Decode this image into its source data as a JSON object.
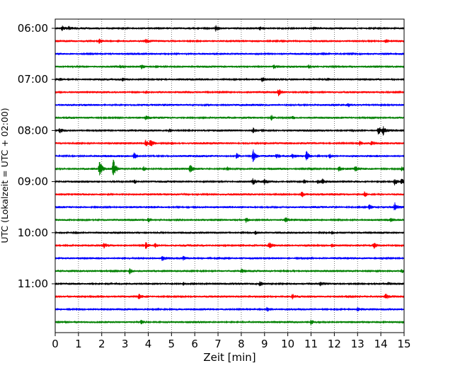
{
  "chart_data": {
    "type": "line",
    "title": "",
    "xlabel": "Zeit  [min]",
    "ylabel": "UTC (Lokalzeit = UTC + 02:00)",
    "xlim": [
      0,
      15
    ],
    "x_ticks": [
      "0",
      "1",
      "2",
      "3",
      "4",
      "5",
      "6",
      "7",
      "8",
      "9",
      "10",
      "11",
      "12",
      "13",
      "14",
      "15"
    ],
    "y_tick_labels": [
      "06:00",
      "07:00",
      "08:00",
      "09:00",
      "10:00",
      "11:00"
    ],
    "grid": "vertical dotted",
    "trace_interval_min": 15,
    "start_utc": "06:00",
    "series": [
      {
        "start": "06:00",
        "color": "#000000",
        "events": [
          [
            0.3,
            3
          ],
          [
            0.6,
            2
          ],
          [
            6.9,
            5
          ],
          [
            8.8,
            2
          ],
          [
            11.1,
            2
          ]
        ]
      },
      {
        "start": "06:15",
        "color": "#ff0000",
        "events": [
          [
            1.9,
            4
          ],
          [
            3.9,
            2
          ],
          [
            14.2,
            3
          ]
        ]
      },
      {
        "start": "06:30",
        "color": "#0000ff",
        "events": [
          [
            5.2,
            1.5
          ],
          [
            11.5,
            1.5
          ]
        ]
      },
      {
        "start": "06:45",
        "color": "#008000",
        "events": [
          [
            2.8,
            2
          ],
          [
            3.7,
            4
          ],
          [
            9.4,
            3
          ],
          [
            10.9,
            2
          ]
        ]
      },
      {
        "start": "07:00",
        "color": "#000000",
        "events": [
          [
            0.2,
            2
          ],
          [
            2.9,
            2
          ],
          [
            8.9,
            3
          ],
          [
            11.7,
            2
          ]
        ]
      },
      {
        "start": "07:15",
        "color": "#ff0000",
        "events": [
          [
            9.6,
            5
          ],
          [
            3.9,
            2
          ]
        ]
      },
      {
        "start": "07:30",
        "color": "#0000ff",
        "events": [
          [
            6.6,
            2
          ],
          [
            12.6,
            2
          ]
        ]
      },
      {
        "start": "07:45",
        "color": "#008000",
        "events": [
          [
            3.9,
            3
          ],
          [
            9.3,
            4
          ],
          [
            10.2,
            2
          ]
        ]
      },
      {
        "start": "08:00",
        "color": "#000000",
        "events": [
          [
            0.2,
            3
          ],
          [
            4.9,
            2.5
          ],
          [
            8.5,
            4
          ],
          [
            8.9,
            3
          ],
          [
            13.9,
            6
          ],
          [
            14.1,
            5
          ]
        ]
      },
      {
        "start": "08:15",
        "color": "#ff0000",
        "events": [
          [
            3.9,
            5
          ],
          [
            4.1,
            6
          ],
          [
            5.0,
            2
          ],
          [
            13.1,
            3
          ],
          [
            13.6,
            2.5
          ]
        ]
      },
      {
        "start": "08:30",
        "color": "#0000ff",
        "events": [
          [
            3.4,
            4
          ],
          [
            7.8,
            4
          ],
          [
            8.5,
            10
          ],
          [
            9.5,
            3
          ],
          [
            10.2,
            3
          ],
          [
            10.8,
            7
          ],
          [
            11.3,
            2
          ],
          [
            11.8,
            3
          ]
        ]
      },
      {
        "start": "08:45",
        "color": "#008000",
        "events": [
          [
            1.9,
            12
          ],
          [
            2.5,
            14
          ],
          [
            3.8,
            3
          ],
          [
            5.8,
            6
          ],
          [
            7.4,
            2.5
          ],
          [
            12.2,
            3
          ],
          [
            12.9,
            3
          ],
          [
            14.9,
            3
          ]
        ]
      },
      {
        "start": "09:00",
        "color": "#000000",
        "events": [
          [
            3.4,
            3
          ],
          [
            8.5,
            4
          ],
          [
            9.0,
            3
          ],
          [
            10.7,
            3
          ],
          [
            11.3,
            3
          ],
          [
            11.5,
            3
          ],
          [
            14.6,
            5
          ],
          [
            14.9,
            4
          ]
        ]
      },
      {
        "start": "09:15",
        "color": "#ff0000",
        "events": [
          [
            10.6,
            4
          ],
          [
            13.3,
            4
          ]
        ]
      },
      {
        "start": "09:30",
        "color": "#0000ff",
        "events": [
          [
            13.5,
            4
          ],
          [
            14.6,
            6
          ]
        ]
      },
      {
        "start": "09:45",
        "color": "#008000",
        "events": [
          [
            4.0,
            3
          ],
          [
            8.2,
            4
          ],
          [
            9.9,
            4
          ],
          [
            14.4,
            2
          ]
        ]
      },
      {
        "start": "10:00",
        "color": "#000000",
        "events": [
          [
            8.6,
            3
          ],
          [
            11.9,
            2
          ]
        ]
      },
      {
        "start": "10:15",
        "color": "#ff0000",
        "events": [
          [
            2.1,
            3
          ],
          [
            3.9,
            5
          ],
          [
            4.3,
            3
          ],
          [
            9.2,
            4
          ],
          [
            11.9,
            3
          ],
          [
            13.7,
            4
          ]
        ]
      },
      {
        "start": "10:30",
        "color": "#0000ff",
        "events": [
          [
            4.6,
            3
          ],
          [
            5.5,
            2
          ]
        ]
      },
      {
        "start": "10:45",
        "color": "#008000",
        "events": [
          [
            3.2,
            4
          ],
          [
            8.0,
            2
          ],
          [
            14.9,
            2
          ]
        ]
      },
      {
        "start": "11:00",
        "color": "#000000",
        "events": [
          [
            5.5,
            2
          ],
          [
            8.8,
            4
          ],
          [
            11.4,
            2
          ],
          [
            14.3,
            2
          ]
        ]
      },
      {
        "start": "11:15",
        "color": "#ff0000",
        "events": [
          [
            3.6,
            3
          ],
          [
            10.2,
            3
          ],
          [
            14.2,
            4
          ]
        ]
      },
      {
        "start": "11:30",
        "color": "#0000ff",
        "events": [
          [
            9.1,
            3
          ],
          [
            13.0,
            2
          ]
        ]
      },
      {
        "start": "11:45",
        "color": "#008000",
        "events": [
          [
            3.7,
            3
          ],
          [
            11.0,
            4
          ]
        ]
      }
    ]
  }
}
